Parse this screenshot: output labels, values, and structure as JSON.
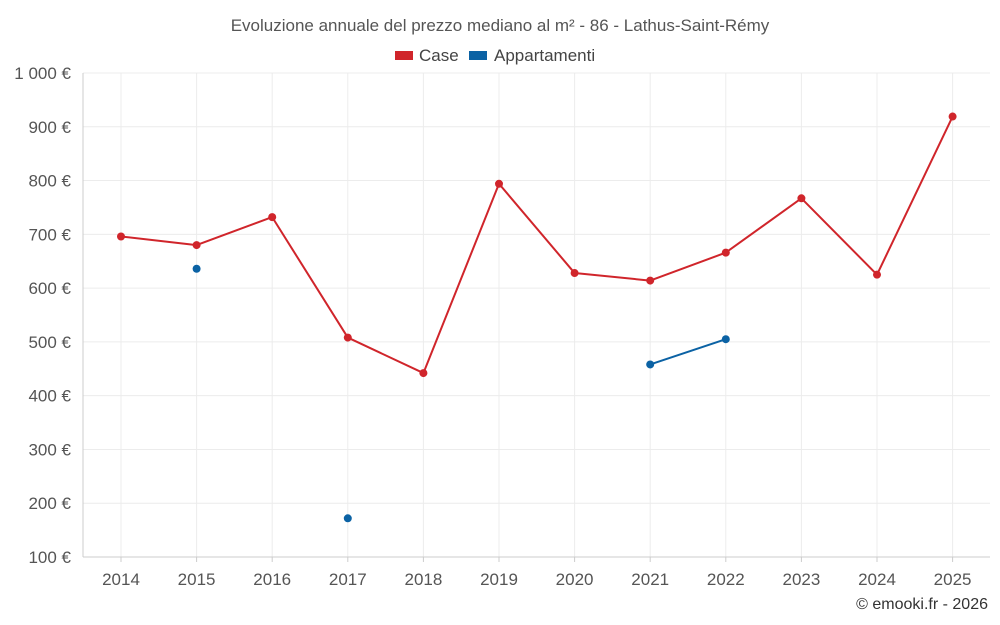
{
  "chart_data": {
    "type": "line",
    "title": "Evoluzione annuale del prezzo mediano al m² - 86 - Lathus-Saint-Rémy",
    "categories": [
      "2014",
      "2015",
      "2016",
      "2017",
      "2018",
      "2019",
      "2020",
      "2021",
      "2022",
      "2023",
      "2024",
      "2025"
    ],
    "yticks": [
      100,
      200,
      300,
      400,
      500,
      600,
      700,
      800,
      900,
      1000
    ],
    "ytick_labels": [
      "100 €",
      "200 €",
      "300 €",
      "400 €",
      "500 €",
      "600 €",
      "700 €",
      "800 €",
      "900 €",
      "1 000 €"
    ],
    "ylim": [
      100,
      1000
    ],
    "grid": true,
    "legend_position": "top-center",
    "series": [
      {
        "name": "Case",
        "color": "#d0252b",
        "values": [
          696,
          680,
          732,
          508,
          442,
          794,
          628,
          614,
          666,
          767,
          625,
          919
        ]
      },
      {
        "name": "Appartamenti",
        "color": "#0b62a4",
        "values": [
          null,
          636,
          null,
          172,
          null,
          null,
          null,
          458,
          505,
          null,
          null,
          null
        ]
      }
    ]
  },
  "credit": "© emooki.fr - 2026"
}
